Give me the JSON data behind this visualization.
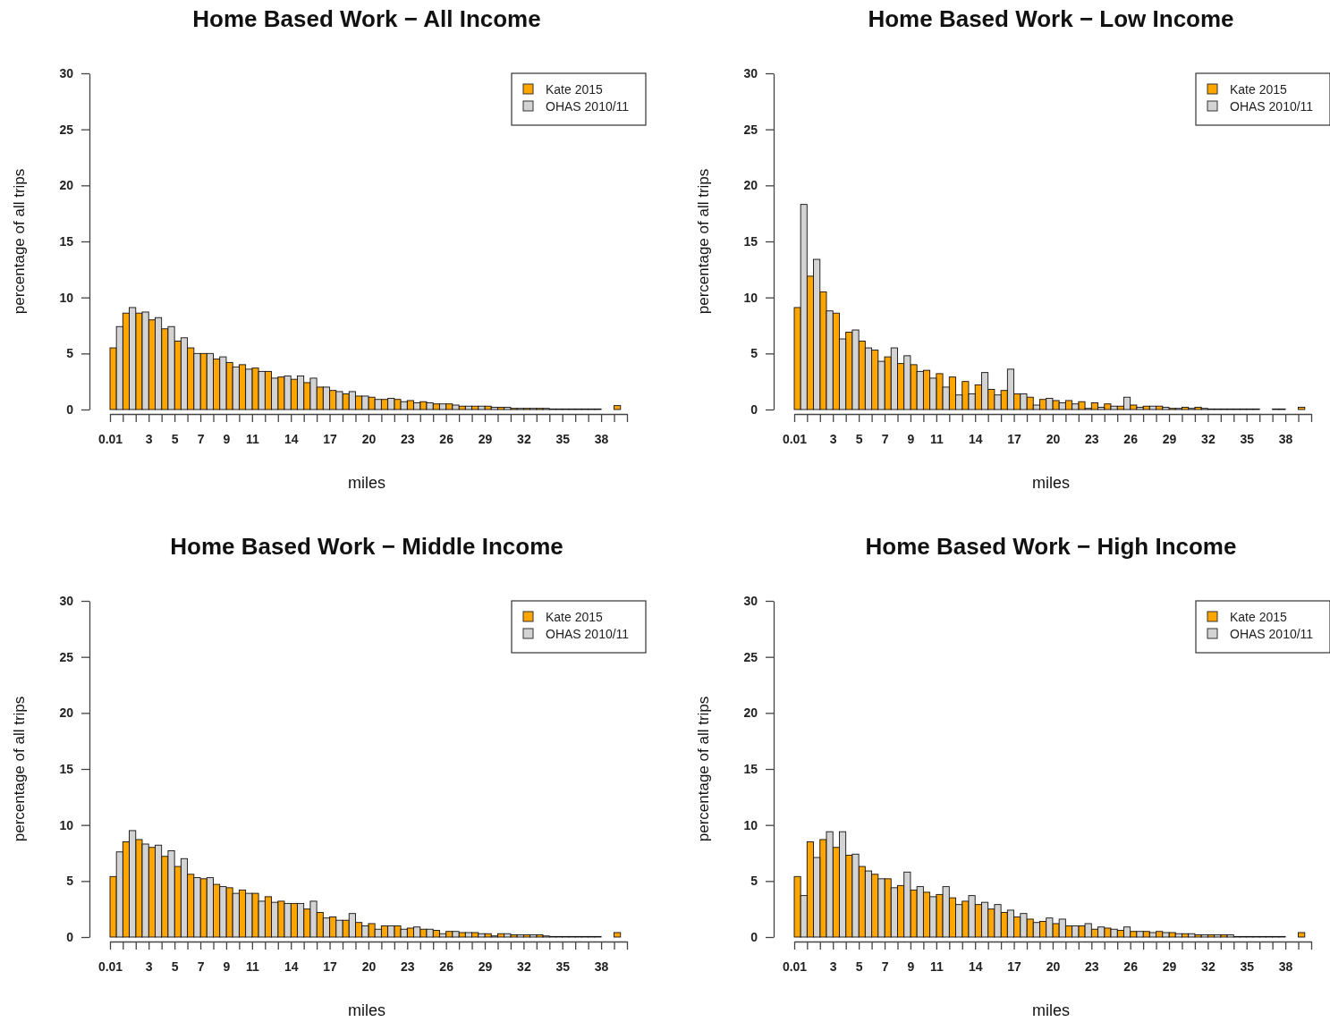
{
  "chart_data": [
    {
      "type": "histogram",
      "title": "Home Based Work − All Income",
      "xlabel": "miles",
      "ylabel": "percentage of all trips",
      "bins": [
        0.01,
        1,
        2,
        3,
        4,
        5,
        6,
        7,
        8,
        9,
        10,
        11,
        12,
        13,
        14,
        15,
        16,
        17,
        18,
        19,
        20,
        21,
        22,
        23,
        24,
        25,
        26,
        27,
        28,
        29,
        30,
        31,
        32,
        33,
        34,
        35,
        36,
        37,
        38,
        39,
        40
      ],
      "series": [
        {
          "name": "Kate 2015",
          "color": "#ffa500",
          "values": [
            5.5,
            8.6,
            8.6,
            8.0,
            7.2,
            6.1,
            5.5,
            5.0,
            4.5,
            4.2,
            4.0,
            3.7,
            3.4,
            2.9,
            2.7,
            2.4,
            2.0,
            1.7,
            1.4,
            1.2,
            1.1,
            0.9,
            0.9,
            0.8,
            0.7,
            0.5,
            0.5,
            0.3,
            0.3,
            0.3,
            0.2,
            0.1,
            0.1,
            0.1,
            0.05,
            0.05,
            0.05,
            0.05,
            0,
            0.35
          ]
        },
        {
          "name": "OHAS 2010/11",
          "color": "#d3d3d3",
          "values": [
            7.4,
            9.1,
            8.7,
            8.2,
            7.4,
            6.4,
            5.0,
            5.0,
            4.7,
            3.8,
            3.6,
            3.4,
            2.8,
            3.0,
            3.0,
            2.8,
            2.0,
            1.6,
            1.6,
            1.2,
            0.9,
            1.0,
            0.7,
            0.6,
            0.6,
            0.5,
            0.4,
            0.3,
            0.3,
            0.2,
            0.2,
            0.1,
            0.1,
            0.1,
            0.05,
            0.05,
            0.05,
            0.05,
            0,
            0
          ]
        }
      ],
      "xlim": [
        0.01,
        40
      ],
      "ylim": [
        0,
        30
      ],
      "yticks": [
        0,
        5,
        10,
        15,
        20,
        25,
        30
      ],
      "xticks": [
        0.01,
        {
          "value": 1,
          "label": null
        },
        {
          "value": 2,
          "label": null
        },
        3,
        {
          "value": 4,
          "label": null
        },
        5,
        {
          "value": 6,
          "label": null
        },
        7,
        {
          "value": 8,
          "label": null
        },
        9,
        {
          "value": 10,
          "label": null
        },
        11,
        {
          "value": 12,
          "label": null
        },
        {
          "value": 13,
          "label": null
        },
        14,
        {
          "value": 15,
          "label": null
        },
        {
          "value": 16,
          "label": null
        },
        17,
        {
          "value": 18,
          "label": null
        },
        {
          "value": 19,
          "label": null
        },
        20,
        {
          "value": 21,
          "label": null
        },
        {
          "value": 22,
          "label": null
        },
        23,
        {
          "value": 24,
          "label": null
        },
        {
          "value": 25,
          "label": null
        },
        26,
        {
          "value": 27,
          "label": null
        },
        {
          "value": 28,
          "label": null
        },
        29,
        {
          "value": 30,
          "label": null
        },
        {
          "value": 31,
          "label": null
        },
        32,
        {
          "value": 33,
          "label": null
        },
        {
          "value": 34,
          "label": null
        },
        35,
        {
          "value": 36,
          "label": null
        },
        {
          "value": 37,
          "label": null
        },
        38,
        {
          "value": 39,
          "label": null
        },
        {
          "value": 40,
          "label": null
        }
      ],
      "legend": "top right"
    },
    {
      "type": "histogram",
      "title": "Home Based Work − Low Income",
      "xlabel": "miles",
      "ylabel": "percentage of all trips",
      "bins": [
        0.01,
        1,
        2,
        3,
        4,
        5,
        6,
        7,
        8,
        9,
        10,
        11,
        12,
        13,
        14,
        15,
        16,
        17,
        18,
        19,
        20,
        21,
        22,
        23,
        24,
        25,
        26,
        27,
        28,
        29,
        30,
        31,
        32,
        33,
        34,
        35,
        36,
        37,
        38,
        39,
        40
      ],
      "series": [
        {
          "name": "Kate 2015",
          "color": "#ffa500",
          "values": [
            9.1,
            11.9,
            10.5,
            8.6,
            6.9,
            6.1,
            5.3,
            4.7,
            4.1,
            4.0,
            3.5,
            3.2,
            2.9,
            2.5,
            2.2,
            1.8,
            1.7,
            1.4,
            1.1,
            0.9,
            0.8,
            0.8,
            0.7,
            0.6,
            0.5,
            0.3,
            0.4,
            0.3,
            0.3,
            0.1,
            0.2,
            0.2,
            0.05,
            0.05,
            0.05,
            0.05,
            0,
            0.05,
            0,
            0.2
          ]
        },
        {
          "name": "OHAS 2010/11",
          "color": "#d3d3d3",
          "values": [
            18.3,
            13.4,
            8.8,
            6.3,
            7.1,
            5.5,
            4.3,
            5.5,
            4.8,
            3.4,
            2.8,
            2.0,
            1.3,
            1.4,
            3.3,
            1.3,
            3.6,
            1.4,
            0.4,
            1.0,
            0.6,
            0.5,
            0.1,
            0.2,
            0.3,
            1.1,
            0.2,
            0.3,
            0.2,
            0.1,
            0.1,
            0.1,
            0.05,
            0.05,
            0.05,
            0.05,
            0,
            0.05,
            0,
            0
          ]
        }
      ],
      "xlim": [
        0.01,
        40
      ],
      "ylim": [
        0,
        30
      ],
      "yticks": [
        0,
        5,
        10,
        15,
        20,
        25,
        30
      ],
      "xticks": [
        0.01,
        {
          "value": 1,
          "label": null
        },
        {
          "value": 2,
          "label": null
        },
        3,
        {
          "value": 4,
          "label": null
        },
        5,
        {
          "value": 6,
          "label": null
        },
        7,
        {
          "value": 8,
          "label": null
        },
        9,
        {
          "value": 10,
          "label": null
        },
        11,
        {
          "value": 12,
          "label": null
        },
        {
          "value": 13,
          "label": null
        },
        14,
        {
          "value": 15,
          "label": null
        },
        {
          "value": 16,
          "label": null
        },
        17,
        {
          "value": 18,
          "label": null
        },
        {
          "value": 19,
          "label": null
        },
        20,
        {
          "value": 21,
          "label": null
        },
        {
          "value": 22,
          "label": null
        },
        23,
        {
          "value": 24,
          "label": null
        },
        {
          "value": 25,
          "label": null
        },
        26,
        {
          "value": 27,
          "label": null
        },
        {
          "value": 28,
          "label": null
        },
        29,
        {
          "value": 30,
          "label": null
        },
        {
          "value": 31,
          "label": null
        },
        32,
        {
          "value": 33,
          "label": null
        },
        {
          "value": 34,
          "label": null
        },
        35,
        {
          "value": 36,
          "label": null
        },
        {
          "value": 37,
          "label": null
        },
        38,
        {
          "value": 39,
          "label": null
        },
        {
          "value": 40,
          "label": null
        }
      ],
      "legend": "top right"
    },
    {
      "type": "histogram",
      "title": "Home Based Work − Middle Income",
      "xlabel": "miles",
      "ylabel": "percentage of all trips",
      "bins": [
        0.01,
        1,
        2,
        3,
        4,
        5,
        6,
        7,
        8,
        9,
        10,
        11,
        12,
        13,
        14,
        15,
        16,
        17,
        18,
        19,
        20,
        21,
        22,
        23,
        24,
        25,
        26,
        27,
        28,
        29,
        30,
        31,
        32,
        33,
        34,
        35,
        36,
        37,
        38,
        39,
        40
      ],
      "series": [
        {
          "name": "Kate 2015",
          "color": "#ffa500",
          "values": [
            5.4,
            8.5,
            8.7,
            8.0,
            7.2,
            6.3,
            5.6,
            5.2,
            4.7,
            4.4,
            4.2,
            3.9,
            3.6,
            3.2,
            3.0,
            2.5,
            2.2,
            1.8,
            1.5,
            1.3,
            1.2,
            1.0,
            1.0,
            0.8,
            0.7,
            0.6,
            0.5,
            0.4,
            0.4,
            0.3,
            0.3,
            0.2,
            0.2,
            0.2,
            0.05,
            0.05,
            0.05,
            0.05,
            0,
            0.4
          ]
        },
        {
          "name": "OHAS 2010/11",
          "color": "#d3d3d3",
          "values": [
            7.6,
            9.5,
            8.3,
            8.2,
            7.7,
            7.0,
            5.3,
            5.3,
            4.5,
            3.9,
            3.9,
            3.2,
            3.1,
            3.0,
            3.0,
            3.2,
            1.7,
            1.5,
            2.1,
            1.0,
            0.7,
            1.0,
            0.7,
            0.9,
            0.7,
            0.3,
            0.5,
            0.4,
            0.3,
            0.1,
            0.3,
            0.2,
            0.2,
            0.1,
            0.05,
            0.05,
            0.05,
            0.05,
            0,
            0
          ]
        }
      ],
      "xlim": [
        0.01,
        40
      ],
      "ylim": [
        0,
        30
      ],
      "yticks": [
        0,
        5,
        10,
        15,
        20,
        25,
        30
      ],
      "xticks": [
        0.01,
        {
          "value": 1,
          "label": null
        },
        {
          "value": 2,
          "label": null
        },
        3,
        {
          "value": 4,
          "label": null
        },
        5,
        {
          "value": 6,
          "label": null
        },
        7,
        {
          "value": 8,
          "label": null
        },
        9,
        {
          "value": 10,
          "label": null
        },
        11,
        {
          "value": 12,
          "label": null
        },
        {
          "value": 13,
          "label": null
        },
        14,
        {
          "value": 15,
          "label": null
        },
        {
          "value": 16,
          "label": null
        },
        17,
        {
          "value": 18,
          "label": null
        },
        {
          "value": 19,
          "label": null
        },
        20,
        {
          "value": 21,
          "label": null
        },
        {
          "value": 22,
          "label": null
        },
        23,
        {
          "value": 24,
          "label": null
        },
        {
          "value": 25,
          "label": null
        },
        26,
        {
          "value": 27,
          "label": null
        },
        {
          "value": 28,
          "label": null
        },
        29,
        {
          "value": 30,
          "label": null
        },
        {
          "value": 31,
          "label": null
        },
        32,
        {
          "value": 33,
          "label": null
        },
        {
          "value": 34,
          "label": null
        },
        35,
        {
          "value": 36,
          "label": null
        },
        {
          "value": 37,
          "label": null
        },
        38,
        {
          "value": 39,
          "label": null
        },
        {
          "value": 40,
          "label": null
        }
      ],
      "legend": "top right"
    },
    {
      "type": "histogram",
      "title": "Home Based Work − High Income",
      "xlabel": "miles",
      "ylabel": "percentage of all trips",
      "bins": [
        0.01,
        1,
        2,
        3,
        4,
        5,
        6,
        7,
        8,
        9,
        10,
        11,
        12,
        13,
        14,
        15,
        16,
        17,
        18,
        19,
        20,
        21,
        22,
        23,
        24,
        25,
        26,
        27,
        28,
        29,
        30,
        31,
        32,
        33,
        34,
        35,
        36,
        37,
        38,
        39,
        40
      ],
      "series": [
        {
          "name": "Kate 2015",
          "color": "#ffa500",
          "values": [
            5.4,
            8.5,
            8.7,
            8.0,
            7.3,
            6.3,
            5.6,
            5.2,
            4.6,
            4.2,
            4.0,
            3.8,
            3.5,
            3.2,
            2.9,
            2.5,
            2.2,
            1.8,
            1.6,
            1.4,
            1.2,
            1.0,
            1.0,
            0.7,
            0.8,
            0.6,
            0.5,
            0.5,
            0.5,
            0.4,
            0.3,
            0.2,
            0.2,
            0.2,
            0.05,
            0.05,
            0.05,
            0.05,
            0,
            0.4
          ]
        },
        {
          "name": "OHAS 2010/11",
          "color": "#d3d3d3",
          "values": [
            3.7,
            7.1,
            9.4,
            9.4,
            7.4,
            5.9,
            5.2,
            4.4,
            5.8,
            4.5,
            3.6,
            4.5,
            2.9,
            3.7,
            3.1,
            2.9,
            2.4,
            2.1,
            1.3,
            1.7,
            1.6,
            1.0,
            1.2,
            0.9,
            0.7,
            0.9,
            0.5,
            0.4,
            0.4,
            0.3,
            0.3,
            0.2,
            0.2,
            0.2,
            0.05,
            0.05,
            0.05,
            0.05,
            0,
            0
          ]
        }
      ],
      "xlim": [
        0.01,
        40
      ],
      "ylim": [
        0,
        30
      ],
      "yticks": [
        0,
        5,
        10,
        15,
        20,
        25,
        30
      ],
      "xticks": [
        0.01,
        {
          "value": 1,
          "label": null
        },
        {
          "value": 2,
          "label": null
        },
        3,
        {
          "value": 4,
          "label": null
        },
        5,
        {
          "value": 6,
          "label": null
        },
        7,
        {
          "value": 8,
          "label": null
        },
        9,
        {
          "value": 10,
          "label": null
        },
        11,
        {
          "value": 12,
          "label": null
        },
        {
          "value": 13,
          "label": null
        },
        14,
        {
          "value": 15,
          "label": null
        },
        {
          "value": 16,
          "label": null
        },
        17,
        {
          "value": 18,
          "label": null
        },
        {
          "value": 19,
          "label": null
        },
        20,
        {
          "value": 21,
          "label": null
        },
        {
          "value": 22,
          "label": null
        },
        23,
        {
          "value": 24,
          "label": null
        },
        {
          "value": 25,
          "label": null
        },
        26,
        {
          "value": 27,
          "label": null
        },
        {
          "value": 28,
          "label": null
        },
        29,
        {
          "value": 30,
          "label": null
        },
        {
          "value": 31,
          "label": null
        },
        32,
        {
          "value": 33,
          "label": null
        },
        {
          "value": 34,
          "label": null
        },
        35,
        {
          "value": 36,
          "label": null
        },
        {
          "value": 37,
          "label": null
        },
        38,
        {
          "value": 39,
          "label": null
        },
        {
          "value": 40,
          "label": null
        }
      ],
      "legend": "top right"
    }
  ]
}
